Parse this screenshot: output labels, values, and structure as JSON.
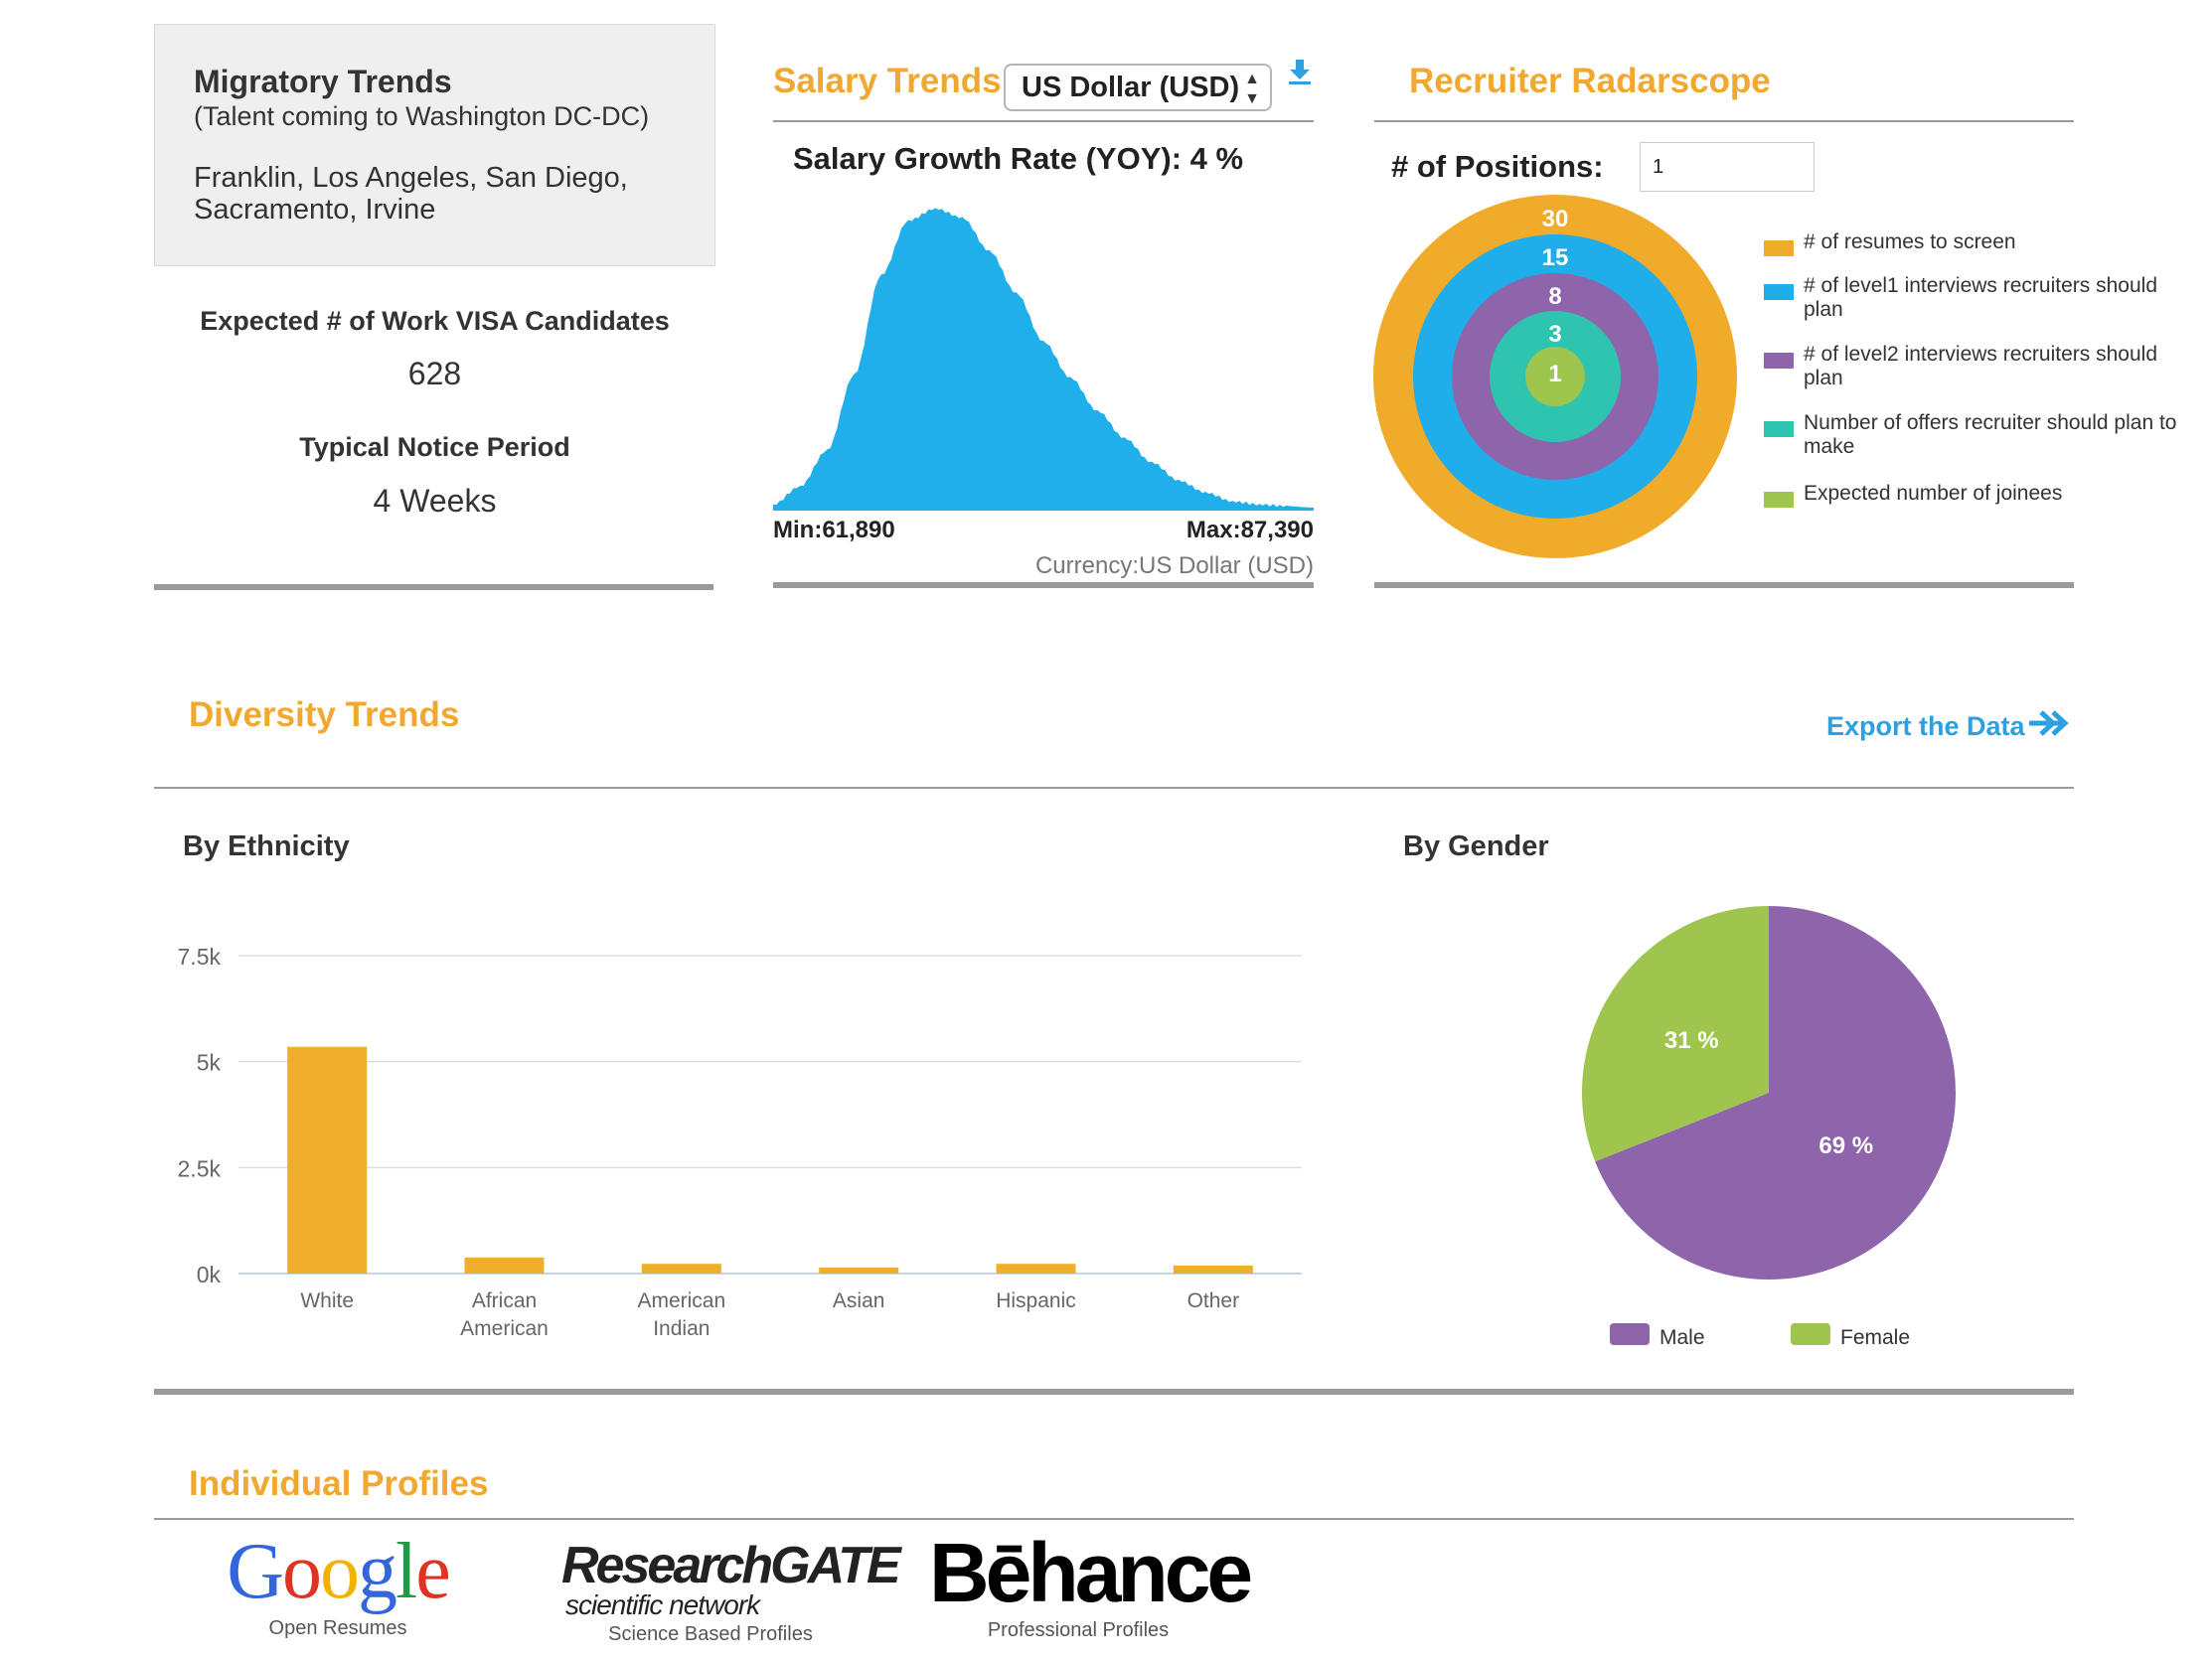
{
  "migratory": {
    "title": "Migratory Trends",
    "subtitle": "(Talent coming to Washington DC-DC)",
    "cities": "Franklin, Los Angeles, San Diego, Sacramento, Irvine"
  },
  "visa": {
    "label": "Expected # of Work VISA Candidates",
    "value": "628"
  },
  "notice": {
    "label": "Typical Notice Period",
    "value": "4 Weeks"
  },
  "salary": {
    "title": "Salary Trends",
    "currency_select": "US Dollar (USD)",
    "growth": "Salary Growth Rate (YOY): 4 %",
    "min_label": "Min:61,890",
    "max_label": "Max:87,390",
    "currency_label": "Currency:US Dollar (USD)",
    "color": "#1fafea"
  },
  "recruiter": {
    "title": "Recruiter Radarscope",
    "positions_label": "# of Positions:",
    "positions_value": "1",
    "rings": [
      {
        "value": "30",
        "color": "#f0ab2b",
        "legend": "# of resumes to screen"
      },
      {
        "value": "15",
        "color": "#1faeea",
        "legend": "# of level1 interviews recruiters should plan"
      },
      {
        "value": "8",
        "color": "#8e64aa",
        "legend": "# of level2 interviews recruiters should plan"
      },
      {
        "value": "3",
        "color": "#2ec4b0",
        "legend": "Number of offers recruiter should plan to make"
      },
      {
        "value": "1",
        "color": "#9ec54e",
        "legend": "Expected number of joinees"
      }
    ]
  },
  "diversity": {
    "title": "Diversity Trends",
    "export_label": "Export the Data",
    "ethnicity_title": "By Ethnicity",
    "gender_title": "By Gender"
  },
  "profiles": {
    "title": "Individual Profiles",
    "items": [
      {
        "logo": "Google",
        "caption": "Open Resumes"
      },
      {
        "logo_main": "ResearchGATE",
        "logo_sub": "scientific network",
        "caption": "Science Based Profiles"
      },
      {
        "logo": "Bēhance",
        "caption": "Professional Profiles"
      }
    ]
  },
  "chart_data": [
    {
      "type": "area",
      "title": "Salary Growth Rate (YOY): 4 %",
      "x": [
        61890,
        63165,
        64440,
        65715,
        66990,
        68265,
        69540,
        70815,
        72090,
        73365,
        74640,
        75915,
        77190,
        78465,
        79740,
        81015,
        82290,
        83565,
        84840,
        86115,
        87390
      ],
      "values": [
        0.02,
        0.08,
        0.2,
        0.45,
        0.78,
        0.96,
        1.0,
        0.97,
        0.86,
        0.72,
        0.56,
        0.44,
        0.33,
        0.24,
        0.16,
        0.1,
        0.06,
        0.03,
        0.02,
        0.015,
        0.01
      ],
      "xlabel": "",
      "ylabel": "",
      "color": "#1fafea"
    },
    {
      "type": "bar",
      "title": "By Ethnicity",
      "categories": [
        "White",
        "African American",
        "American Indian",
        "Asian",
        "Hispanic",
        "Other"
      ],
      "values": [
        5350,
        380,
        230,
        140,
        230,
        190
      ],
      "ylim": [
        0,
        7500
      ],
      "yticks": [
        "0k",
        "2.5k",
        "5k",
        "7.5k"
      ],
      "grid": true,
      "color": "#f0ae2b"
    },
    {
      "type": "pie",
      "title": "By Gender",
      "categories": [
        "Male",
        "Female"
      ],
      "values": [
        69,
        31
      ],
      "labels": [
        "69 %",
        "31 %"
      ],
      "colors": [
        "#8e64aa",
        "#9fc54e"
      ],
      "legend": "bottom"
    }
  ]
}
